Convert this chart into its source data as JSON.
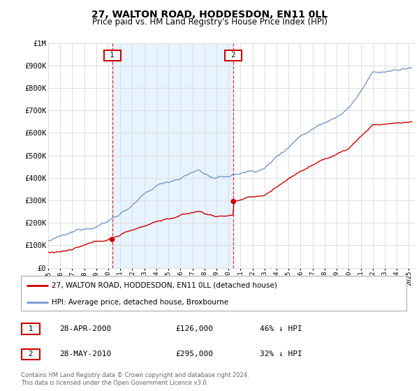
{
  "title": "27, WALTON ROAD, HODDESDON, EN11 0LL",
  "subtitle": "Price paid vs. HM Land Registry's House Price Index (HPI)",
  "ylim": [
    0,
    1000000
  ],
  "yticks": [
    0,
    100000,
    200000,
    300000,
    400000,
    500000,
    600000,
    700000,
    800000,
    900000,
    1000000
  ],
  "ytick_labels": [
    "£0",
    "£100K",
    "£200K",
    "£300K",
    "£400K",
    "£500K",
    "£600K",
    "£700K",
    "£800K",
    "£900K",
    "£1M"
  ],
  "xlim_start": 1995.0,
  "xlim_end": 2025.5,
  "purchase1_year": 2000.32,
  "purchase1_price": 126000,
  "purchase1_label": "28-APR-2000",
  "purchase1_value_label": "£126,000",
  "purchase1_pct": "46% ↓ HPI",
  "purchase2_year": 2010.41,
  "purchase2_price": 295000,
  "purchase2_label": "28-MAY-2010",
  "purchase2_value_label": "£295,000",
  "purchase2_pct": "32% ↓ HPI",
  "red_line_label": "27, WALTON ROAD, HODDESDON, EN11 0LL (detached house)",
  "blue_line_label": "HPI: Average price, detached house, Broxbourne",
  "footer": "Contains HM Land Registry data © Crown copyright and database right 2024.\nThis data is licensed under the Open Government Licence v3.0.",
  "background_color": "#ffffff",
  "grid_color": "#dddddd",
  "red_color": "#cc0000",
  "blue_color": "#7799cc",
  "fill_color": "#ddeeff"
}
